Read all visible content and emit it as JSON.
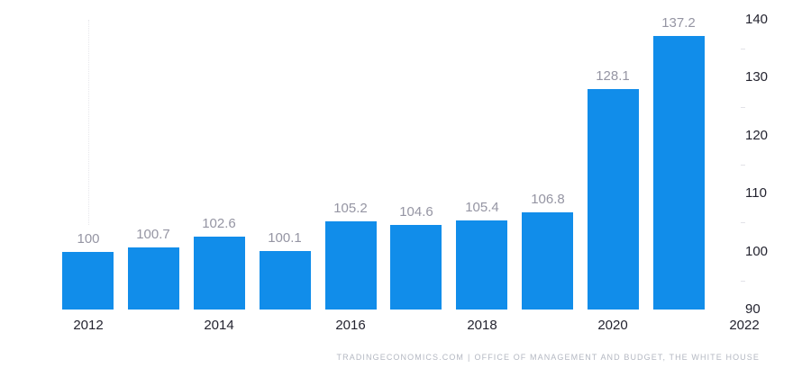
{
  "chart_data": {
    "type": "bar",
    "title": "",
    "xlabel": "",
    "ylabel": "",
    "categories": [
      "2012",
      "2013",
      "2014",
      "2015",
      "2016",
      "2017",
      "2018",
      "2019",
      "2020",
      "2021"
    ],
    "values": [
      100,
      100.7,
      102.6,
      100.1,
      105.2,
      104.6,
      105.4,
      106.8,
      128.1,
      137.2
    ],
    "value_labels": [
      "100",
      "100.7",
      "102.6",
      "100.1",
      "105.2",
      "104.6",
      "105.4",
      "106.8",
      "128.1",
      "137.2"
    ],
    "x_tick_labels": [
      "2012",
      "2014",
      "2016",
      "2018",
      "2020",
      "2022"
    ],
    "y_tick_values": [
      90,
      100,
      110,
      120,
      130,
      140
    ],
    "y_tick_labels": [
      "90",
      "100",
      "110",
      "120",
      "130",
      "140"
    ],
    "y_minor_tick_values": [
      95,
      105,
      115,
      125,
      135
    ],
    "ylim": [
      90,
      140
    ],
    "grid": "off",
    "legend": "none",
    "y_axis_side": "right",
    "hover_gridline_at_category": "2012",
    "colors": {
      "bar": "#118DEA",
      "value_label": "#9595A3",
      "axis_label": "#23232F",
      "minor_tick": "#E2E2E8",
      "hover_gridline": "#E7E7EB",
      "attribution": "#B4B8C2",
      "background": "#FFFFFF"
    }
  },
  "footer": {
    "brand": "TRADINGECONOMICS.COM",
    "separator": "|",
    "source": "OFFICE OF MANAGEMENT AND BUDGET, THE WHITE HOUSE"
  }
}
